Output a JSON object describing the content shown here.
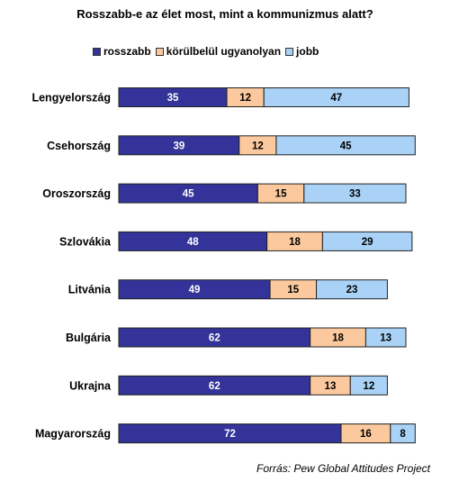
{
  "chart_data": {
    "type": "bar",
    "orientation": "horizontal",
    "stacked": true,
    "title": "Rosszabb-e az élet most, mint a kommunizmus alatt?",
    "categories": [
      "Lengyelország",
      "Csehország",
      "Oroszország",
      "Szlovákia",
      "Litvánia",
      "Bulgária",
      "Ukrajna",
      "Magyarország"
    ],
    "series": [
      {
        "name": "rosszabb",
        "color": "#33339a",
        "label_color": "#ffffff",
        "values": [
          35,
          39,
          45,
          48,
          49,
          62,
          62,
          72
        ]
      },
      {
        "name": "körülbelül ugyanolyan",
        "color": "#fbc99d",
        "label_color": "#000000",
        "values": [
          12,
          12,
          15,
          18,
          15,
          18,
          13,
          16
        ]
      },
      {
        "name": "jobb",
        "color": "#a9d2f6",
        "label_color": "#000000",
        "values": [
          47,
          45,
          33,
          29,
          23,
          13,
          12,
          8
        ]
      }
    ],
    "xlim": [
      0,
      100
    ],
    "grid": false,
    "legend": "top",
    "source": "Forrás: Pew Global Attitudes Project"
  }
}
